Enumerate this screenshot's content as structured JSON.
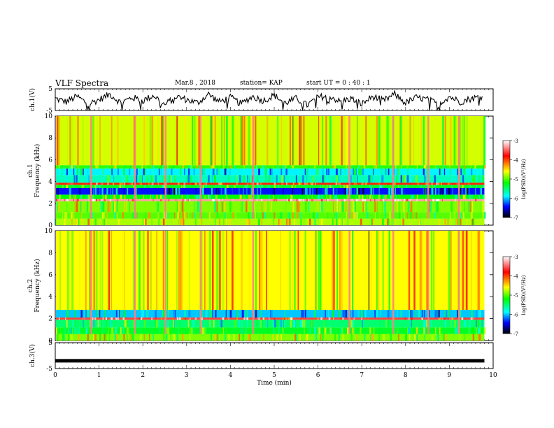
{
  "header": {
    "title": "VLF Spectra",
    "date": "Mar.8 , 2018",
    "station": "station= KAP",
    "start": "start UT = 0 : 40 : 1"
  },
  "colorbar": {
    "label": "log(PSD)(V²/Hz)",
    "ticks": [
      "-3",
      "-4",
      "-5",
      "-6",
      "-7"
    ],
    "colors": [
      "#ffffff",
      "#ff0000",
      "#ffff00",
      "#00ff00",
      "#00ffff",
      "#0000ff",
      "#000000"
    ]
  },
  "chart_data": [
    {
      "type": "line",
      "name": "ch.1 waveform",
      "ylabel": "ch.1(V)",
      "ylim": [
        -5,
        5
      ],
      "ytick_labels": [
        "5",
        "-5"
      ],
      "xlim": [
        0,
        10
      ],
      "x": [
        0.0,
        0.25,
        0.5,
        0.75,
        1.0,
        1.25,
        1.5,
        1.75,
        2.0,
        2.25,
        2.5,
        2.75,
        3.0,
        3.25,
        3.5,
        3.75,
        4.0,
        4.25,
        4.5,
        4.75,
        5.0,
        5.25,
        5.5,
        5.75,
        6.0,
        6.25,
        6.5,
        6.75,
        7.0,
        7.25,
        7.5,
        7.75,
        8.0,
        8.25,
        8.5,
        8.75,
        9.0,
        9.25,
        9.5,
        9.75
      ],
      "y": [
        0.5,
        -1.0,
        1.5,
        -2.0,
        0.0,
        2.5,
        -1.5,
        1.0,
        -0.5,
        2.0,
        -2.5,
        1.5,
        0.0,
        -1.5,
        2.5,
        -1.0,
        1.0,
        -2.0,
        1.5,
        -0.5,
        2.0,
        -1.5,
        0.5,
        -2.5,
        1.0,
        2.0,
        -1.0,
        0.5,
        -2.0,
        1.5,
        -0.5,
        2.5,
        -1.5,
        1.0,
        0.0,
        -2.0,
        1.5,
        -1.0,
        0.5,
        1.5
      ]
    },
    {
      "type": "heatmap",
      "name": "ch.1 spectrogram",
      "ylabel": "ch.1 Frequency (kHz)",
      "ylim": [
        0,
        10
      ],
      "ytick_labels": [
        "0",
        "2",
        "4",
        "6",
        "8",
        "10"
      ],
      "xlim": [
        0,
        10
      ],
      "clim": [
        -7,
        -3
      ],
      "bands": [
        {
          "f": [
            0,
            0.6
          ],
          "level": -4.8
        },
        {
          "f": [
            0.6,
            1.2
          ],
          "level": -5.0
        },
        {
          "f": [
            1.2,
            2.2
          ],
          "level": -4.9
        },
        {
          "f": [
            2.2,
            2.4
          ],
          "level": -3.3
        },
        {
          "f": [
            2.4,
            2.8
          ],
          "level": -5.2
        },
        {
          "f": [
            2.8,
            3.4
          ],
          "level": -6.4
        },
        {
          "f": [
            3.4,
            3.7
          ],
          "level": -5.3
        },
        {
          "f": [
            3.7,
            3.9
          ],
          "level": -3.9
        },
        {
          "f": [
            3.9,
            4.6
          ],
          "level": -5.7
        },
        {
          "f": [
            4.6,
            5.2
          ],
          "level": -5.9
        },
        {
          "f": [
            5.2,
            5.5
          ],
          "level": -5.1
        },
        {
          "f": [
            5.5,
            10
          ],
          "level": -4.7
        }
      ],
      "bursts_min": [
        0.8,
        1.8,
        2.5,
        3.3,
        4.5,
        6.7,
        7.7,
        8.5,
        9.2
      ]
    },
    {
      "type": "heatmap",
      "name": "ch.2 spectrogram",
      "ylabel": "ch.2 Frequency (kHz)",
      "ylim": [
        0,
        10
      ],
      "ytick_labels": [
        "0",
        "2",
        "4",
        "6",
        "8",
        "10"
      ],
      "xlim": [
        0,
        10
      ],
      "clim": [
        -7,
        -3
      ],
      "bands": [
        {
          "f": [
            0,
            0.6
          ],
          "level": -4.9
        },
        {
          "f": [
            0.6,
            1.2
          ],
          "level": -5.3
        },
        {
          "f": [
            1.2,
            1.9
          ],
          "level": -5.5
        },
        {
          "f": [
            1.9,
            2.1
          ],
          "level": -3.6
        },
        {
          "f": [
            2.1,
            2.8
          ],
          "level": -6.0
        },
        {
          "f": [
            2.8,
            10
          ],
          "level": -4.6
        }
      ],
      "bursts_min": [
        0.8,
        1.8,
        2.5,
        3.3,
        4.5,
        6.7,
        7.7,
        8.5,
        9.2
      ]
    },
    {
      "type": "line",
      "name": "ch.3 waveform",
      "ylabel": "ch.3(V)",
      "ylim": [
        -5,
        5
      ],
      "ytick_labels": [
        "5",
        "-5"
      ],
      "xlim": [
        0,
        10
      ],
      "x": [
        0.0,
        9.8
      ],
      "y": [
        -2.0,
        -2.0
      ],
      "xlabel": "Time (min)",
      "xtick_labels": [
        "0",
        "1",
        "2",
        "3",
        "4",
        "5",
        "6",
        "7",
        "8",
        "9",
        "10"
      ]
    }
  ]
}
